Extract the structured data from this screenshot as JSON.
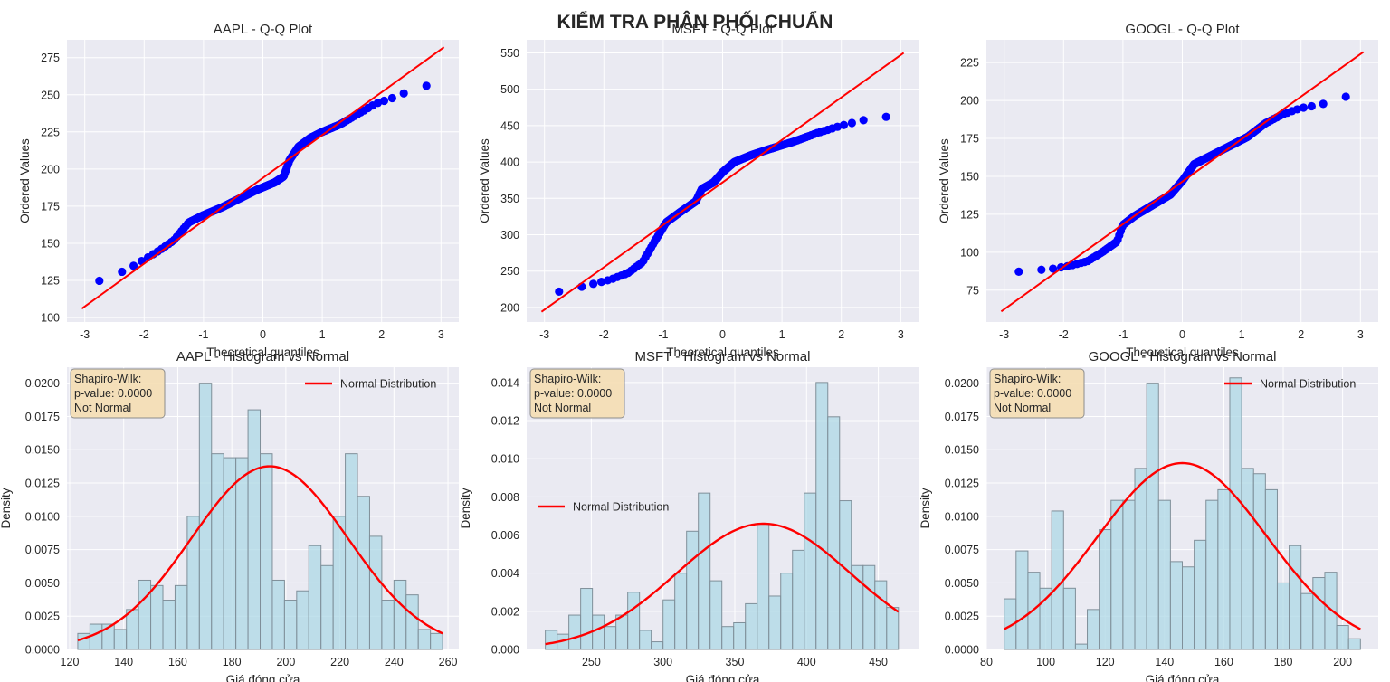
{
  "figure": {
    "suptitle": "KIỂM TRA PHÂN PHỐI CHUẨN"
  },
  "chart_data": [
    {
      "type": "scatter",
      "title": "AAPL - Q-Q Plot",
      "xlabel": "Theoretical quantiles",
      "ylabel": "Ordered Values",
      "xlim": [
        -3.3,
        3.3
      ],
      "ylim": [
        97,
        287
      ],
      "xticks": [
        -3,
        -2,
        -1,
        0,
        1,
        2,
        3
      ],
      "yticks": [
        100,
        125,
        150,
        175,
        200,
        225,
        250,
        275
      ],
      "grid": true,
      "points_quantile_curve": [
        [
          -3.05,
          123
        ],
        [
          -2.8,
          124
        ],
        [
          -2.55,
          128
        ],
        [
          -2.3,
          132
        ],
        [
          -2.0,
          139
        ],
        [
          -1.75,
          145
        ],
        [
          -1.5,
          152
        ],
        [
          -1.25,
          164
        ],
        [
          -1.0,
          169
        ],
        [
          -0.7,
          174
        ],
        [
          -0.4,
          180
        ],
        [
          -0.1,
          186
        ],
        [
          0.2,
          191
        ],
        [
          0.35,
          195
        ],
        [
          0.45,
          206
        ],
        [
          0.6,
          215
        ],
        [
          0.8,
          221
        ],
        [
          1.0,
          225
        ],
        [
          1.3,
          230
        ],
        [
          1.6,
          237
        ],
        [
          1.9,
          244
        ],
        [
          2.2,
          248
        ],
        [
          2.5,
          253
        ],
        [
          2.75,
          256
        ],
        [
          3.05,
          259
        ]
      ],
      "fit_line": {
        "x": [
          -3.05,
          3.05
        ],
        "y": [
          106,
          282
        ]
      }
    },
    {
      "type": "scatter",
      "title": "MSFT - Q-Q Plot",
      "xlabel": "Theoretical quantiles",
      "ylabel": "Ordered Values",
      "xlim": [
        -3.3,
        3.3
      ],
      "ylim": [
        180,
        568
      ],
      "xticks": [
        -3,
        -2,
        -1,
        0,
        1,
        2,
        3
      ],
      "yticks": [
        200,
        250,
        300,
        350,
        400,
        450,
        500,
        550
      ],
      "grid": true,
      "points_quantile_curve": [
        [
          -3.05,
          218
        ],
        [
          -2.8,
          221
        ],
        [
          -2.5,
          226
        ],
        [
          -2.2,
          232
        ],
        [
          -1.9,
          238
        ],
        [
          -1.6,
          247
        ],
        [
          -1.35,
          262
        ],
        [
          -1.15,
          290
        ],
        [
          -0.95,
          317
        ],
        [
          -0.7,
          332
        ],
        [
          -0.45,
          346
        ],
        [
          -0.35,
          363
        ],
        [
          -0.15,
          372
        ],
        [
          0.0,
          386
        ],
        [
          0.2,
          400
        ],
        [
          0.5,
          410
        ],
        [
          0.8,
          418
        ],
        [
          1.2,
          428
        ],
        [
          1.6,
          440
        ],
        [
          2.0,
          450
        ],
        [
          2.4,
          458
        ],
        [
          2.75,
          462
        ],
        [
          3.05,
          465
        ]
      ],
      "fit_line": {
        "x": [
          -3.05,
          3.05
        ],
        "y": [
          194,
          550
        ]
      }
    },
    {
      "type": "scatter",
      "title": "GOOGL - Q-Q Plot",
      "xlabel": "Theoretical quantiles",
      "ylabel": "Ordered Values",
      "xlim": [
        -3.3,
        3.3
      ],
      "ylim": [
        54,
        240
      ],
      "xticks": [
        -3,
        -2,
        -1,
        0,
        1,
        2,
        3
      ],
      "yticks": [
        75,
        100,
        125,
        150,
        175,
        200,
        225
      ],
      "grid": true,
      "points_quantile_curve": [
        [
          -3.05,
          86
        ],
        [
          -2.8,
          87
        ],
        [
          -2.5,
          88
        ],
        [
          -2.2,
          89
        ],
        [
          -1.9,
          91
        ],
        [
          -1.6,
          94
        ],
        [
          -1.35,
          100
        ],
        [
          -1.1,
          107
        ],
        [
          -1.0,
          118
        ],
        [
          -0.8,
          124
        ],
        [
          -0.5,
          131
        ],
        [
          -0.2,
          138
        ],
        [
          0.0,
          147
        ],
        [
          0.2,
          158
        ],
        [
          0.5,
          164
        ],
        [
          0.8,
          170
        ],
        [
          1.1,
          176
        ],
        [
          1.4,
          185
        ],
        [
          1.7,
          191
        ],
        [
          2.0,
          195
        ],
        [
          2.3,
          197
        ],
        [
          2.6,
          200
        ],
        [
          2.85,
          204
        ],
        [
          3.05,
          206
        ]
      ],
      "fit_line": {
        "x": [
          -3.05,
          3.05
        ],
        "y": [
          61,
          232
        ]
      }
    },
    {
      "type": "bar",
      "title": "AAPL - Histogram vs Normal",
      "xlabel": "Giá đóng cửa",
      "ylabel": "Density",
      "xlim": [
        119,
        264
      ],
      "ylim": [
        0,
        0.0212
      ],
      "xticks": [
        120,
        140,
        160,
        180,
        200,
        220,
        240,
        260
      ],
      "yticks": [
        0,
        0.0025,
        0.005,
        0.0075,
        0.01,
        0.0125,
        0.015,
        0.0175,
        0.02
      ],
      "ytick_labels": [
        "0.0000",
        "0.0025",
        "0.0050",
        "0.0075",
        "0.0100",
        "0.0125",
        "0.0150",
        "0.0175",
        "0.0200"
      ],
      "bins_start": 123,
      "bin_width": 4.5,
      "values": [
        0.0012,
        0.0019,
        0.0019,
        0.0015,
        0.003,
        0.0052,
        0.0048,
        0.0037,
        0.0048,
        0.01,
        0.02,
        0.0147,
        0.0144,
        0.0144,
        0.018,
        0.0147,
        0.0052,
        0.0037,
        0.0044,
        0.0078,
        0.0063,
        0.01,
        0.0147,
        0.0115,
        0.0085,
        0.0037,
        0.0052,
        0.0041,
        0.0015,
        0.0012
      ],
      "normal_curve": {
        "name": "Normal Distribution",
        "mean": 194,
        "sd": 29
      },
      "stats_box": [
        "Shapiro-Wilk:",
        "p-value: 0.0000",
        "Not Normal"
      ],
      "legend_position": "upper right",
      "grid": true
    },
    {
      "type": "bar",
      "title": "MSFT - Histogram vs Normal",
      "xlabel": "Giá đóng cửa",
      "ylabel": "Density",
      "xlim": [
        205,
        478
      ],
      "ylim": [
        0,
        0.0148
      ],
      "xticks": [
        250,
        300,
        350,
        400,
        450
      ],
      "yticks": [
        0,
        0.002,
        0.004,
        0.006,
        0.008,
        0.01,
        0.012,
        0.014
      ],
      "ytick_labels": [
        "0.000",
        "0.002",
        "0.004",
        "0.006",
        "0.008",
        "0.010",
        "0.012",
        "0.014"
      ],
      "bins_start": 218,
      "bin_width": 8.2,
      "values": [
        0.001,
        0.0008,
        0.0018,
        0.0032,
        0.0018,
        0.0012,
        0.0018,
        0.003,
        0.001,
        0.0004,
        0.0026,
        0.004,
        0.0062,
        0.0082,
        0.0036,
        0.0012,
        0.0014,
        0.0024,
        0.0066,
        0.0028,
        0.004,
        0.0052,
        0.0082,
        0.014,
        0.0122,
        0.0078,
        0.0044,
        0.0044,
        0.0036,
        0.0022
      ],
      "normal_curve": {
        "name": "Normal Distribution",
        "mean": 370,
        "sd": 60.5
      },
      "stats_box": [
        "Shapiro-Wilk:",
        "p-value: 0.0000",
        "Not Normal"
      ],
      "legend_position": "center left",
      "grid": true
    },
    {
      "type": "bar",
      "title": "GOOGL - Histogram vs Normal",
      "xlabel": "Giá đóng cửa",
      "ylabel": "Density",
      "xlim": [
        80,
        212
      ],
      "ylim": [
        0,
        0.0212
      ],
      "xticks": [
        80,
        100,
        120,
        140,
        160,
        180,
        200
      ],
      "yticks": [
        0,
        0.0025,
        0.005,
        0.0075,
        0.01,
        0.0125,
        0.015,
        0.0175,
        0.02
      ],
      "ytick_labels": [
        "0.0000",
        "0.0025",
        "0.0050",
        "0.0075",
        "0.0100",
        "0.0125",
        "0.0150",
        "0.0175",
        "0.0200"
      ],
      "bins_start": 86,
      "bin_width": 4.0,
      "values": [
        0.0038,
        0.0074,
        0.0058,
        0.0046,
        0.0104,
        0.0046,
        0.0004,
        0.003,
        0.009,
        0.0112,
        0.0112,
        0.0136,
        0.02,
        0.0112,
        0.0066,
        0.0062,
        0.0082,
        0.0112,
        0.012,
        0.0204,
        0.0136,
        0.0132,
        0.012,
        0.005,
        0.0078,
        0.0042,
        0.0054,
        0.0058,
        0.0018,
        0.0008
      ],
      "normal_curve": {
        "name": "Normal Distribution",
        "mean": 146,
        "sd": 28.5
      },
      "stats_box": [
        "Shapiro-Wilk:",
        "p-value: 0.0000",
        "Not Normal"
      ],
      "legend_position": "upper right",
      "grid": true
    }
  ]
}
